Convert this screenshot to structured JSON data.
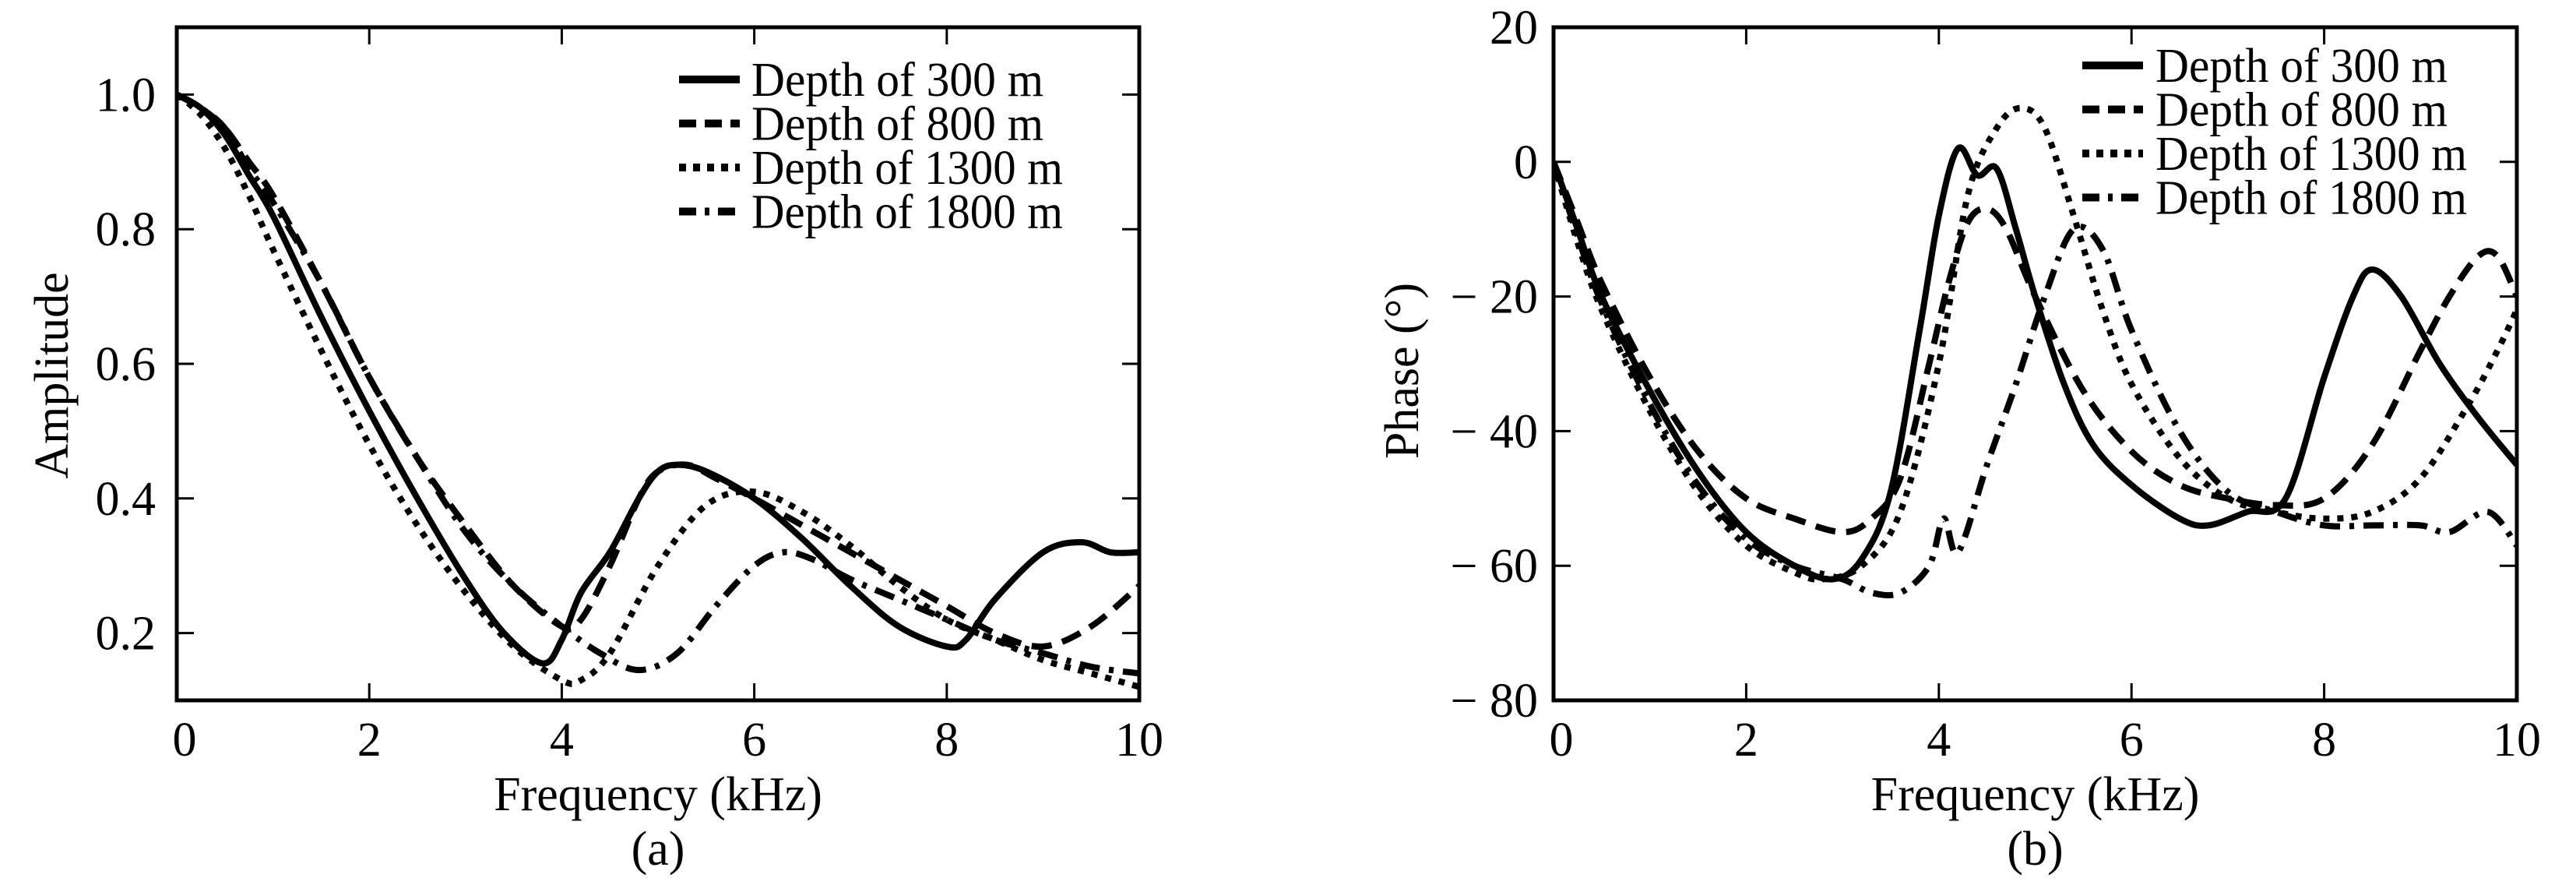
{
  "colors": {
    "line": "#000000",
    "background": "#ffffff"
  },
  "chart_data": [
    {
      "type": "line",
      "panel_label": "(a)",
      "xlabel": "Frequency (kHz)",
      "ylabel": "Amplitude",
      "xlim": [
        0,
        10
      ],
      "ylim": [
        0.1,
        1.1
      ],
      "xticks": [
        0,
        2,
        4,
        6,
        8,
        10
      ],
      "xtick_labels": [
        "0",
        "2",
        "4",
        "6",
        "8",
        "10"
      ],
      "yticks": [
        0.2,
        0.4,
        0.6,
        0.8,
        1.0
      ],
      "ytick_labels": [
        "0.2",
        "0.4",
        "0.6",
        "0.8",
        "1.0"
      ],
      "grid": false,
      "legend_position": "top-right",
      "series": [
        {
          "name": "Depth of 300 m",
          "style": "solid",
          "x": [
            0,
            0.25,
            0.5,
            0.75,
            1,
            1.5,
            2,
            2.5,
            3,
            3.4,
            3.8,
            4.0,
            4.2,
            4.5,
            4.8,
            5.0,
            5.2,
            5.5,
            6.0,
            6.5,
            7.0,
            7.5,
            8.0,
            8.2,
            8.5,
            9.0,
            9.4,
            9.7,
            10
          ],
          "y": [
            1.0,
            0.98,
            0.94,
            0.88,
            0.82,
            0.67,
            0.53,
            0.4,
            0.28,
            0.2,
            0.155,
            0.19,
            0.26,
            0.32,
            0.4,
            0.44,
            0.45,
            0.44,
            0.4,
            0.34,
            0.27,
            0.21,
            0.18,
            0.19,
            0.25,
            0.32,
            0.335,
            0.32,
            0.32
          ]
        },
        {
          "name": "Depth of 800 m",
          "style": "dashed",
          "x": [
            0,
            0.25,
            0.5,
            0.75,
            1,
            1.5,
            2,
            2.5,
            3,
            3.5,
            4.0,
            4.2,
            4.5,
            4.8,
            5.0,
            5.3,
            5.6,
            6.0,
            6.5,
            7.0,
            7.5,
            8.0,
            8.5,
            9.0,
            9.5,
            10
          ],
          "y": [
            1.0,
            0.98,
            0.95,
            0.9,
            0.85,
            0.72,
            0.58,
            0.46,
            0.36,
            0.27,
            0.21,
            0.22,
            0.3,
            0.4,
            0.44,
            0.45,
            0.43,
            0.4,
            0.36,
            0.32,
            0.28,
            0.24,
            0.2,
            0.18,
            0.21,
            0.27
          ]
        },
        {
          "name": "Depth of 1300 m",
          "style": "dotted",
          "x": [
            0,
            0.25,
            0.5,
            0.75,
            1,
            1.5,
            2,
            2.5,
            3,
            3.5,
            4.0,
            4.2,
            4.5,
            5.0,
            5.5,
            6.0,
            6.5,
            7.0,
            7.5,
            8.0,
            8.5,
            9.0,
            9.5,
            10
          ],
          "y": [
            1.0,
            0.97,
            0.92,
            0.85,
            0.77,
            0.62,
            0.48,
            0.36,
            0.26,
            0.18,
            0.13,
            0.13,
            0.17,
            0.3,
            0.39,
            0.41,
            0.38,
            0.33,
            0.27,
            0.22,
            0.19,
            0.16,
            0.14,
            0.12
          ]
        },
        {
          "name": "Depth of 1800 m",
          "style": "dashdot",
          "x": [
            0,
            0.25,
            0.5,
            0.75,
            1,
            1.5,
            2,
            2.5,
            3,
            3.5,
            4.0,
            4.4,
            4.8,
            5.2,
            5.6,
            6.0,
            6.3,
            6.6,
            7.0,
            7.5,
            8.0,
            8.5,
            9.0,
            9.5,
            10
          ],
          "y": [
            1.0,
            0.98,
            0.95,
            0.89,
            0.84,
            0.72,
            0.58,
            0.46,
            0.35,
            0.27,
            0.21,
            0.17,
            0.145,
            0.17,
            0.24,
            0.3,
            0.32,
            0.31,
            0.28,
            0.25,
            0.22,
            0.19,
            0.17,
            0.15,
            0.14
          ]
        }
      ]
    },
    {
      "type": "line",
      "panel_label": "(b)",
      "xlabel": "Frequency (kHz)",
      "ylabel": "Phase (°)",
      "xlim": [
        0,
        10
      ],
      "ylim": [
        -80,
        20
      ],
      "xticks": [
        0,
        2,
        4,
        6,
        8,
        10
      ],
      "xtick_labels": [
        "0",
        "2",
        "4",
        "6",
        "8",
        "10"
      ],
      "yticks": [
        -80,
        -60,
        -40,
        -20,
        0,
        20
      ],
      "ytick_labels": [
        "− 80",
        "− 60",
        "− 40",
        "− 20",
        "0",
        "20"
      ],
      "grid": false,
      "legend_position": "top-right",
      "series": [
        {
          "name": "Depth of 300 m",
          "style": "solid",
          "x": [
            0,
            0.25,
            0.5,
            1,
            1.5,
            2,
            2.5,
            2.9,
            3.2,
            3.5,
            3.8,
            4.0,
            4.2,
            4.4,
            4.6,
            4.8,
            5.0,
            5.3,
            5.6,
            6.0,
            6.5,
            6.8,
            7.2,
            7.6,
            8.0,
            8.3,
            8.5,
            8.8,
            9.2,
            9.6,
            10
          ],
          "y": [
            0,
            -10,
            -20,
            -34,
            -46,
            -55,
            -60,
            -62,
            -59,
            -49,
            -25,
            -8,
            2,
            -2,
            -1,
            -10,
            -20,
            -33,
            -42,
            -48,
            -53,
            -54,
            -52,
            -50,
            -32,
            -20,
            -16,
            -20,
            -30,
            -38,
            -45
          ]
        },
        {
          "name": "Depth of 800 m",
          "style": "dashed",
          "x": [
            0,
            0.25,
            0.5,
            1,
            1.5,
            2,
            2.5,
            3.0,
            3.3,
            3.6,
            3.9,
            4.1,
            4.3,
            4.5,
            4.7,
            5.0,
            5.5,
            6.0,
            6.5,
            7.0,
            7.5,
            8.0,
            8.5,
            9.0,
            9.3,
            9.6,
            9.8,
            10
          ],
          "y": [
            0,
            -9,
            -18,
            -32,
            -43,
            -50,
            -53,
            -55,
            -53,
            -47,
            -30,
            -18,
            -9,
            -7,
            -10,
            -20,
            -34,
            -43,
            -48,
            -50,
            -51,
            -50,
            -42,
            -28,
            -20,
            -14,
            -14,
            -20
          ]
        },
        {
          "name": "Depth of 1300 m",
          "style": "dotted",
          "x": [
            0,
            0.25,
            0.5,
            1,
            1.5,
            2,
            2.5,
            2.8,
            3.2,
            3.6,
            4.0,
            4.3,
            4.6,
            4.85,
            5.1,
            5.4,
            5.7,
            6.0,
            6.5,
            7.0,
            7.5,
            8.0,
            8.5,
            9.0,
            9.5,
            9.8,
            10
          ],
          "y": [
            0,
            -12,
            -22,
            -37,
            -49,
            -57,
            -61,
            -62,
            -60,
            -52,
            -30,
            -5,
            5,
            8,
            5,
            -8,
            -22,
            -33,
            -44,
            -50,
            -52,
            -53,
            -52,
            -47,
            -36,
            -28,
            -22
          ]
        },
        {
          "name": "Depth of 1800 m",
          "style": "dashdot",
          "x": [
            0,
            0.25,
            0.5,
            1,
            1.5,
            2,
            2.5,
            3.0,
            3.3,
            3.6,
            3.9,
            4.05,
            4.2,
            4.5,
            4.8,
            5.1,
            5.4,
            5.7,
            6.0,
            6.5,
            7.0,
            7.5,
            8.0,
            8.5,
            9.0,
            9.3,
            9.7,
            10
          ],
          "y": [
            0,
            -11,
            -21,
            -36,
            -48,
            -56,
            -60,
            -62,
            -64,
            -64,
            -60,
            -53,
            -58,
            -45,
            -33,
            -20,
            -10,
            -13,
            -25,
            -40,
            -49,
            -52,
            -54,
            -54,
            -54,
            -55,
            -52,
            -57
          ]
        }
      ]
    }
  ]
}
